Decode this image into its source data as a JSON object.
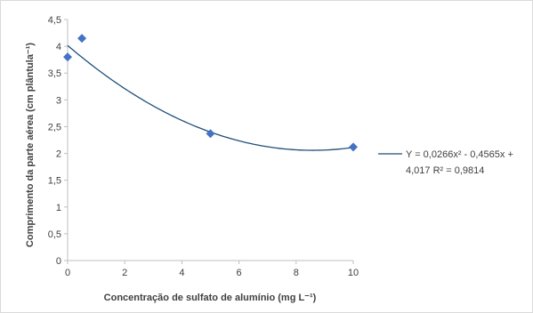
{
  "chart_data": {
    "type": "scatter",
    "xlabel": "Concentração de sulfato de alumínio (mg L⁻¹)",
    "ylabel": "Comprimento da parte aérea (cm plântula⁻¹)",
    "xlim": [
      0,
      10
    ],
    "ylim": [
      0,
      4.5
    ],
    "x_ticks": [
      "0",
      "2",
      "4",
      "6",
      "8",
      "10"
    ],
    "y_ticks": [
      "0",
      "0,5",
      "1",
      "1,5",
      "2",
      "2,5",
      "3",
      "3,5",
      "4",
      "4,5"
    ],
    "points": [
      {
        "x": 0,
        "y": 3.8
      },
      {
        "x": 0.5,
        "y": 4.15
      },
      {
        "x": 5,
        "y": 2.37
      },
      {
        "x": 10,
        "y": 2.12
      }
    ],
    "trendline": {
      "type": "polynomial",
      "coefficients": [
        0.0266,
        -0.4565,
        4.017
      ],
      "legend_line1": "Y = 0,0266x² - 0,4565x +",
      "legend_line2": "4,017 R² = 0,9814"
    },
    "grid": false,
    "legend_position": "right",
    "colors": {
      "marker": "#4472c4",
      "trendline": "#1f4e79",
      "axis": "#bfbfbf"
    }
  }
}
